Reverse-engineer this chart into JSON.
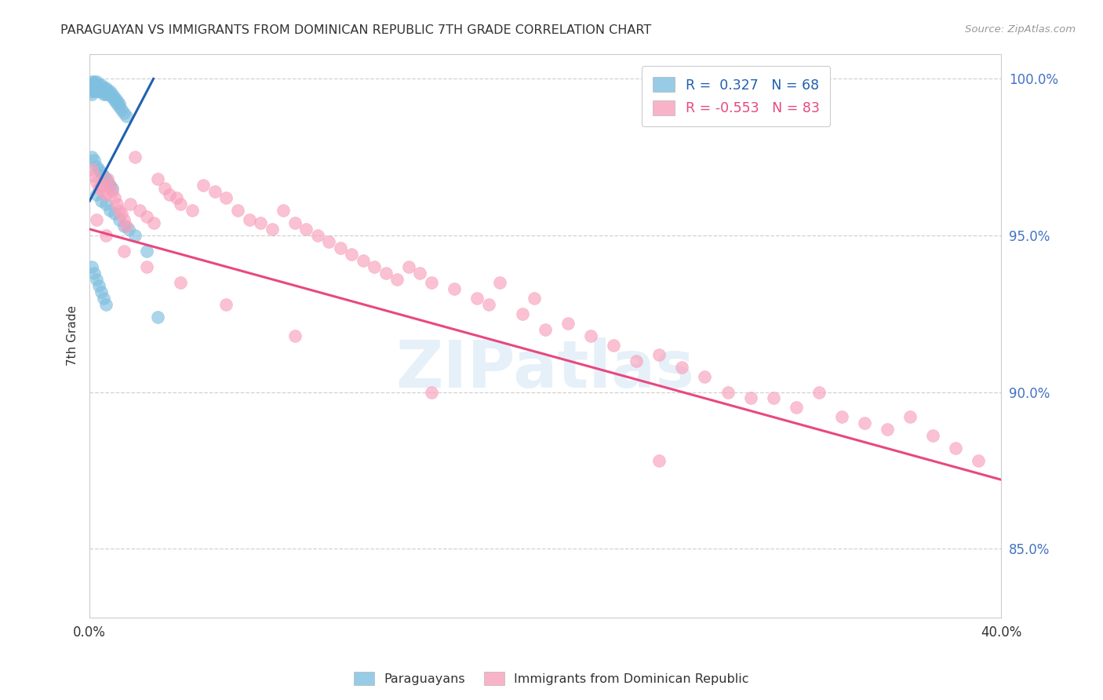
{
  "title": "PARAGUAYAN VS IMMIGRANTS FROM DOMINICAN REPUBLIC 7TH GRADE CORRELATION CHART",
  "source": "Source: ZipAtlas.com",
  "ylabel": "7th Grade",
  "xlim": [
    0.0,
    0.4
  ],
  "ylim": [
    0.828,
    1.008
  ],
  "yticks": [
    0.85,
    0.9,
    0.95,
    1.0
  ],
  "xticks": [
    0.0,
    0.05,
    0.1,
    0.15,
    0.2,
    0.25,
    0.3,
    0.35,
    0.4
  ],
  "blue_R": 0.327,
  "blue_N": 68,
  "pink_R": -0.553,
  "pink_N": 83,
  "legend_label_blue": "Paraguayans",
  "legend_label_pink": "Immigrants from Dominican Republic",
  "blue_color": "#7fbfdf",
  "pink_color": "#f8a0bc",
  "blue_line_color": "#2060b0",
  "pink_line_color": "#e84880",
  "watermark": "ZIPatlas",
  "blue_scatter_x": [
    0.001,
    0.001,
    0.001,
    0.001,
    0.001,
    0.002,
    0.002,
    0.002,
    0.002,
    0.003,
    0.003,
    0.003,
    0.003,
    0.004,
    0.004,
    0.004,
    0.005,
    0.005,
    0.005,
    0.006,
    0.006,
    0.006,
    0.007,
    0.007,
    0.007,
    0.008,
    0.008,
    0.009,
    0.009,
    0.01,
    0.01,
    0.011,
    0.011,
    0.012,
    0.012,
    0.013,
    0.013,
    0.014,
    0.015,
    0.016,
    0.001,
    0.002,
    0.003,
    0.004,
    0.005,
    0.006,
    0.007,
    0.008,
    0.009,
    0.01,
    0.003,
    0.005,
    0.007,
    0.009,
    0.011,
    0.013,
    0.015,
    0.017,
    0.02,
    0.025,
    0.001,
    0.002,
    0.003,
    0.004,
    0.005,
    0.006,
    0.007,
    0.03
  ],
  "blue_scatter_y": [
    0.999,
    0.998,
    0.997,
    0.996,
    0.995,
    0.999,
    0.998,
    0.997,
    0.996,
    0.999,
    0.998,
    0.997,
    0.996,
    0.998,
    0.997,
    0.996,
    0.998,
    0.997,
    0.996,
    0.997,
    0.996,
    0.995,
    0.997,
    0.996,
    0.995,
    0.996,
    0.995,
    0.996,
    0.995,
    0.995,
    0.994,
    0.994,
    0.993,
    0.993,
    0.992,
    0.992,
    0.991,
    0.99,
    0.989,
    0.988,
    0.975,
    0.974,
    0.972,
    0.971,
    0.97,
    0.969,
    0.968,
    0.967,
    0.966,
    0.965,
    0.963,
    0.961,
    0.96,
    0.958,
    0.957,
    0.955,
    0.953,
    0.952,
    0.95,
    0.945,
    0.94,
    0.938,
    0.936,
    0.934,
    0.932,
    0.93,
    0.928,
    0.924
  ],
  "pink_scatter_x": [
    0.001,
    0.002,
    0.003,
    0.004,
    0.005,
    0.006,
    0.007,
    0.008,
    0.009,
    0.01,
    0.011,
    0.012,
    0.013,
    0.014,
    0.015,
    0.016,
    0.018,
    0.02,
    0.022,
    0.025,
    0.028,
    0.03,
    0.033,
    0.035,
    0.038,
    0.04,
    0.045,
    0.05,
    0.055,
    0.06,
    0.065,
    0.07,
    0.075,
    0.08,
    0.085,
    0.09,
    0.095,
    0.1,
    0.105,
    0.11,
    0.115,
    0.12,
    0.125,
    0.13,
    0.135,
    0.14,
    0.145,
    0.15,
    0.16,
    0.17,
    0.175,
    0.18,
    0.19,
    0.195,
    0.2,
    0.21,
    0.22,
    0.23,
    0.24,
    0.25,
    0.26,
    0.27,
    0.28,
    0.29,
    0.3,
    0.31,
    0.32,
    0.33,
    0.34,
    0.35,
    0.36,
    0.37,
    0.38,
    0.39,
    0.003,
    0.007,
    0.015,
    0.025,
    0.04,
    0.06,
    0.09,
    0.15,
    0.25
  ],
  "pink_scatter_y": [
    0.971,
    0.969,
    0.967,
    0.965,
    0.966,
    0.964,
    0.963,
    0.968,
    0.966,
    0.964,
    0.962,
    0.96,
    0.958,
    0.957,
    0.955,
    0.953,
    0.96,
    0.975,
    0.958,
    0.956,
    0.954,
    0.968,
    0.965,
    0.963,
    0.962,
    0.96,
    0.958,
    0.966,
    0.964,
    0.962,
    0.958,
    0.955,
    0.954,
    0.952,
    0.958,
    0.954,
    0.952,
    0.95,
    0.948,
    0.946,
    0.944,
    0.942,
    0.94,
    0.938,
    0.936,
    0.94,
    0.938,
    0.935,
    0.933,
    0.93,
    0.928,
    0.935,
    0.925,
    0.93,
    0.92,
    0.922,
    0.918,
    0.915,
    0.91,
    0.912,
    0.908,
    0.905,
    0.9,
    0.898,
    0.898,
    0.895,
    0.9,
    0.892,
    0.89,
    0.888,
    0.892,
    0.886,
    0.882,
    0.878,
    0.955,
    0.95,
    0.945,
    0.94,
    0.935,
    0.928,
    0.918,
    0.9,
    0.878
  ],
  "pink_line_x": [
    0.0,
    0.4
  ],
  "pink_line_y": [
    0.952,
    0.872
  ],
  "blue_line_x": [
    0.0,
    0.028
  ],
  "blue_line_y": [
    0.961,
    1.0
  ]
}
